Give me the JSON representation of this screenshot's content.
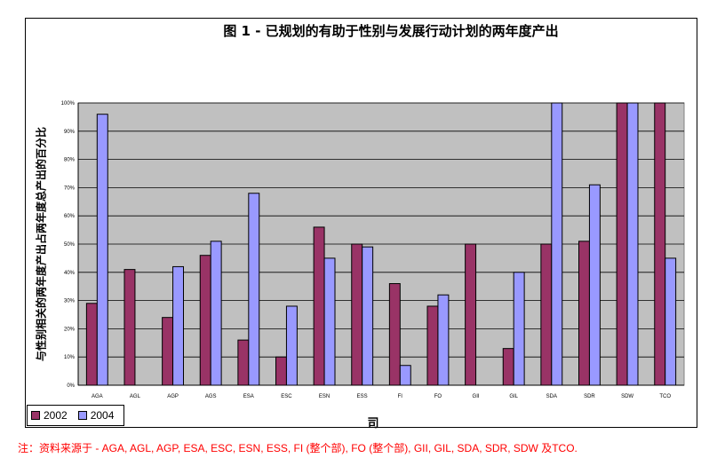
{
  "colors": {
    "s2002": "#993366",
    "s2004": "#9999ff",
    "plot_bg": "#c0c0c0"
  },
  "note": "注：资料来源于 - AGA, AGL, AGP, ESA, ESC, ESN, ESS, FI (整个部), FO (整个部), GII, GIL, SDA, SDR, SDW 及TCO.",
  "chart_data": {
    "type": "bar",
    "title": "图 1 - 已规划的有助于性别与发展行动计划的两年度产出",
    "xlabel": "司",
    "ylabel": "与性别相关的两年度产出占两年度总产出的百分比",
    "categories": [
      "AGA",
      "AGL",
      "AGP",
      "AGS",
      "ESA",
      "ESC",
      "ESN",
      "ESS",
      "FI",
      "FO",
      "GII",
      "GIL",
      "SDA",
      "SDR",
      "SDW",
      "TCO"
    ],
    "series": [
      {
        "name": "2002",
        "values": [
          29,
          41,
          24,
          46,
          16,
          10,
          56,
          50,
          36,
          28,
          50,
          13,
          50,
          51,
          100,
          100
        ]
      },
      {
        "name": "2004",
        "values": [
          96,
          null,
          42,
          51,
          68,
          28,
          45,
          49,
          7,
          32,
          null,
          40,
          100,
          71,
          100,
          45
        ]
      }
    ],
    "ylim": [
      0,
      100
    ],
    "yticks": [
      "0%",
      "10%",
      "20%",
      "30%",
      "40%",
      "50%",
      "60%",
      "70%",
      "80%",
      "90%",
      "100%"
    ],
    "grid": true,
    "legend": "bottom-left"
  }
}
